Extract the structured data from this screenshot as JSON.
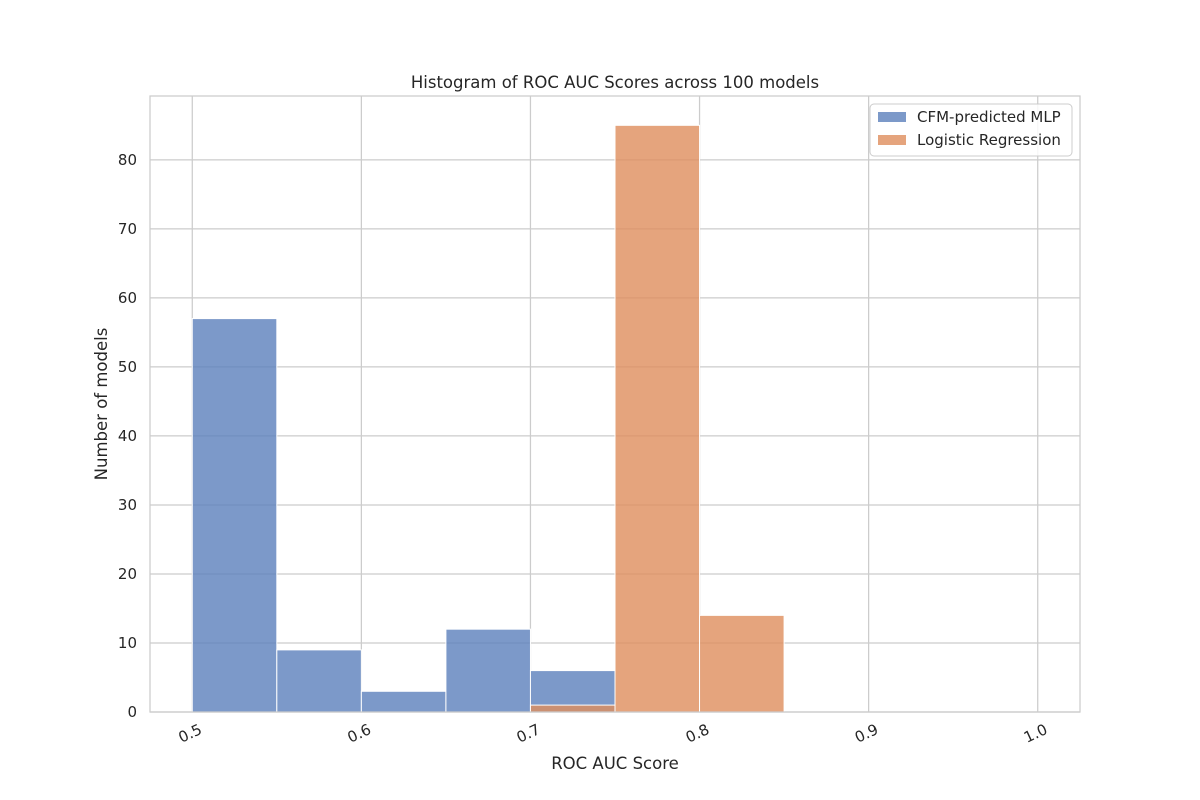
{
  "chart_data": {
    "type": "bar",
    "title": "Histogram of ROC AUC Scores across 100 models",
    "xlabel": "ROC AUC Score",
    "ylabel": "Number of models",
    "xlim": [
      0.475,
      1.025
    ],
    "ylim": [
      0,
      89.25
    ],
    "xticks": [
      0.5,
      0.6,
      0.7,
      0.8,
      0.9,
      1.0
    ],
    "xtick_labels": [
      "0.5",
      "0.6",
      "0.7",
      "0.8",
      "0.9",
      "1.0"
    ],
    "yticks": [
      0,
      10,
      20,
      30,
      40,
      50,
      60,
      70,
      80
    ],
    "ytick_labels": [
      "0",
      "10",
      "20",
      "30",
      "40",
      "50",
      "60",
      "70",
      "80"
    ],
    "bin_edges": [
      0.5,
      0.55,
      0.6,
      0.65,
      0.7,
      0.75,
      0.8,
      0.85,
      0.9,
      0.95,
      1.0
    ],
    "grid": true,
    "legend_position": "top-right",
    "series": [
      {
        "name": "CFM-predicted MLP",
        "color": "#5b7fbb",
        "values": [
          57,
          9,
          3,
          12,
          6,
          0,
          0,
          0,
          0,
          0
        ]
      },
      {
        "name": "Logistic Regression",
        "color": "#de8d5c",
        "values": [
          0,
          0,
          0,
          0,
          1,
          85,
          14,
          0,
          0,
          0
        ]
      }
    ]
  }
}
